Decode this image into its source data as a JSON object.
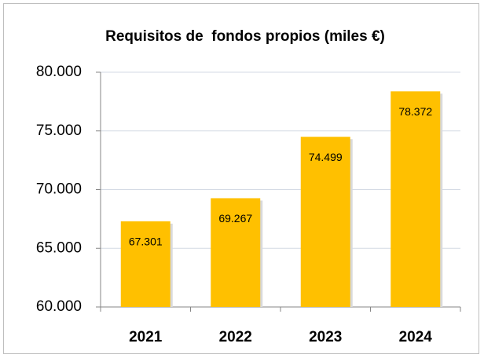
{
  "chart_data": {
    "type": "bar",
    "title": "Requisitos de  fondos propios (miles €)",
    "categories": [
      "2021",
      "2022",
      "2023",
      "2024"
    ],
    "values": [
      67301,
      69267,
      74499,
      78372
    ],
    "value_labels": [
      "67.301",
      "69.267",
      "74.499",
      "78.372"
    ],
    "color": "#ffc000",
    "ylim": [
      60000,
      80000
    ],
    "yticks": [
      {
        "value": 60000,
        "label": "60.000"
      },
      {
        "value": 65000,
        "label": "65.000"
      },
      {
        "value": 70000,
        "label": "70.000"
      },
      {
        "value": 75000,
        "label": "75.000"
      },
      {
        "value": 80000,
        "label": "80.000"
      }
    ],
    "grid": true
  }
}
